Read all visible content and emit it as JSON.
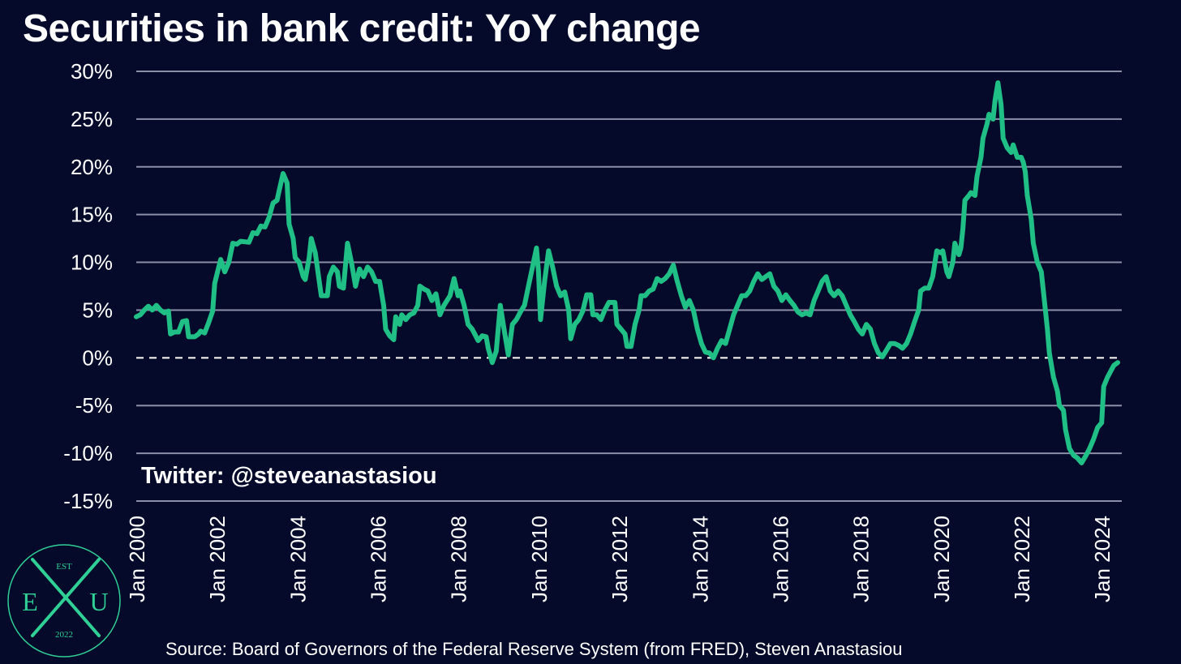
{
  "header": {
    "title": "Securities in bank credit: YoY change"
  },
  "watermark": "Twitter: @steveanastasiou",
  "source": "Source: Board of Governors of the Federal Reserve System (from FRED), Steven Anastasiou",
  "logo": {
    "est": "EST",
    "left_letter": "E",
    "center_letter": "X",
    "right_letter": "U",
    "year": "2022"
  },
  "colors": {
    "background": "#050a2a",
    "line": "#1fbf86",
    "grid": "#8c8fa8",
    "text": "#ffffff"
  },
  "chart_data": {
    "type": "line",
    "title": "Securities in bank credit: YoY change",
    "xlabel": "",
    "ylabel": "",
    "ylim": [
      -15,
      30
    ],
    "xlim": [
      2000.0,
      2024.5
    ],
    "grid": true,
    "zero_line": "dashed",
    "y_ticks": [
      {
        "value": 30,
        "label": "30%"
      },
      {
        "value": 25,
        "label": "25%"
      },
      {
        "value": 20,
        "label": "20%"
      },
      {
        "value": 15,
        "label": "15%"
      },
      {
        "value": 10,
        "label": "10%"
      },
      {
        "value": 5,
        "label": "5%"
      },
      {
        "value": 0,
        "label": "0%"
      },
      {
        "value": -5,
        "label": "-5%"
      },
      {
        "value": -10,
        "label": "-10%"
      },
      {
        "value": -15,
        "label": "-15%"
      }
    ],
    "x_ticks": [
      {
        "value": 2000,
        "label": "Jan 2000"
      },
      {
        "value": 2002,
        "label": "Jan 2002"
      },
      {
        "value": 2004,
        "label": "Jan 2004"
      },
      {
        "value": 2006,
        "label": "Jan 2006"
      },
      {
        "value": 2008,
        "label": "Jan 2008"
      },
      {
        "value": 2010,
        "label": "Jan 2010"
      },
      {
        "value": 2012,
        "label": "Jan 2012"
      },
      {
        "value": 2014,
        "label": "Jan 2014"
      },
      {
        "value": 2016,
        "label": "Jan 2016"
      },
      {
        "value": 2018,
        "label": "Jan 2018"
      },
      {
        "value": 2020,
        "label": "Jan 2020"
      },
      {
        "value": 2022,
        "label": "Jan 2022"
      },
      {
        "value": 2024,
        "label": "Jan 2024"
      }
    ],
    "series": [
      {
        "points": [
          [
            2000.0,
            4.3
          ],
          [
            2000.1,
            4.5
          ],
          [
            2000.2,
            5.0
          ],
          [
            2000.3,
            5.4
          ],
          [
            2000.4,
            5.0
          ],
          [
            2000.5,
            5.5
          ],
          [
            2000.6,
            5.0
          ],
          [
            2000.7,
            4.7
          ],
          [
            2000.8,
            4.9
          ],
          [
            2000.85,
            2.5
          ],
          [
            2000.95,
            2.7
          ],
          [
            2001.05,
            2.7
          ],
          [
            2001.15,
            3.8
          ],
          [
            2001.25,
            3.9
          ],
          [
            2001.3,
            2.2
          ],
          [
            2001.45,
            2.2
          ],
          [
            2001.55,
            2.5
          ],
          [
            2001.6,
            2.8
          ],
          [
            2001.7,
            2.6
          ],
          [
            2001.8,
            3.7
          ],
          [
            2001.9,
            4.9
          ],
          [
            2001.95,
            7.8
          ],
          [
            2002.05,
            9.5
          ],
          [
            2002.1,
            10.3
          ],
          [
            2002.2,
            9.0
          ],
          [
            2002.3,
            10.0
          ],
          [
            2002.4,
            12.0
          ],
          [
            2002.5,
            11.9
          ],
          [
            2002.6,
            12.2
          ],
          [
            2002.8,
            12.1
          ],
          [
            2002.9,
            13.1
          ],
          [
            2003.0,
            13.0
          ],
          [
            2003.1,
            13.8
          ],
          [
            2003.2,
            13.7
          ],
          [
            2003.3,
            14.7
          ],
          [
            2003.4,
            16.2
          ],
          [
            2003.5,
            16.5
          ],
          [
            2003.55,
            17.5
          ],
          [
            2003.65,
            19.3
          ],
          [
            2003.75,
            18.3
          ],
          [
            2003.8,
            14.0
          ],
          [
            2003.9,
            12.5
          ],
          [
            2003.95,
            10.5
          ],
          [
            2004.05,
            10.0
          ],
          [
            2004.15,
            8.5
          ],
          [
            2004.2,
            8.2
          ],
          [
            2004.3,
            10.5
          ],
          [
            2004.35,
            12.5
          ],
          [
            2004.45,
            11.0
          ],
          [
            2004.55,
            8.0
          ],
          [
            2004.6,
            6.5
          ],
          [
            2004.75,
            6.5
          ],
          [
            2004.8,
            8.5
          ],
          [
            2004.9,
            9.5
          ],
          [
            2005.0,
            9.0
          ],
          [
            2005.05,
            7.5
          ],
          [
            2005.15,
            7.3
          ],
          [
            2005.25,
            12.0
          ],
          [
            2005.35,
            10.0
          ],
          [
            2005.45,
            7.5
          ],
          [
            2005.55,
            9.3
          ],
          [
            2005.65,
            8.5
          ],
          [
            2005.75,
            9.5
          ],
          [
            2005.85,
            9.0
          ],
          [
            2005.95,
            8.0
          ],
          [
            2006.05,
            8.0
          ],
          [
            2006.15,
            5.5
          ],
          [
            2006.2,
            3.0
          ],
          [
            2006.3,
            2.3
          ],
          [
            2006.4,
            1.9
          ],
          [
            2006.45,
            4.3
          ],
          [
            2006.55,
            3.5
          ],
          [
            2006.6,
            4.5
          ],
          [
            2006.7,
            4.0
          ],
          [
            2006.8,
            4.5
          ],
          [
            2006.9,
            4.7
          ],
          [
            2007.0,
            5.5
          ],
          [
            2007.05,
            7.5
          ],
          [
            2007.15,
            7.2
          ],
          [
            2007.25,
            7.0
          ],
          [
            2007.35,
            6.0
          ],
          [
            2007.45,
            6.7
          ],
          [
            2007.55,
            4.5
          ],
          [
            2007.65,
            5.5
          ],
          [
            2007.8,
            6.5
          ],
          [
            2007.9,
            8.3
          ],
          [
            2008.0,
            6.5
          ],
          [
            2008.05,
            7.0
          ],
          [
            2008.15,
            5.5
          ],
          [
            2008.25,
            3.5
          ],
          [
            2008.35,
            3.0
          ],
          [
            2008.4,
            2.6
          ],
          [
            2008.5,
            1.8
          ],
          [
            2008.6,
            2.3
          ],
          [
            2008.7,
            2.2
          ],
          [
            2008.75,
            1.0
          ],
          [
            2008.85,
            -0.5
          ],
          [
            2008.95,
            0.7
          ],
          [
            2009.05,
            5.5
          ],
          [
            2009.15,
            2.8
          ],
          [
            2009.25,
            0.3
          ],
          [
            2009.35,
            3.5
          ],
          [
            2009.45,
            4.0
          ],
          [
            2009.55,
            4.8
          ],
          [
            2009.65,
            5.5
          ],
          [
            2009.75,
            7.5
          ],
          [
            2009.85,
            9.5
          ],
          [
            2009.95,
            11.5
          ],
          [
            2010.0,
            9.0
          ],
          [
            2010.05,
            4.0
          ],
          [
            2010.15,
            8.0
          ],
          [
            2010.25,
            11.2
          ],
          [
            2010.35,
            9.5
          ],
          [
            2010.45,
            7.5
          ],
          [
            2010.55,
            6.5
          ],
          [
            2010.65,
            6.9
          ],
          [
            2010.75,
            5.0
          ],
          [
            2010.8,
            2.0
          ],
          [
            2010.9,
            3.5
          ],
          [
            2011.0,
            4.0
          ],
          [
            2011.1,
            4.9
          ],
          [
            2011.2,
            6.6
          ],
          [
            2011.3,
            6.6
          ],
          [
            2011.35,
            4.5
          ],
          [
            2011.45,
            4.5
          ],
          [
            2011.55,
            4.0
          ],
          [
            2011.65,
            5.0
          ],
          [
            2011.75,
            5.8
          ],
          [
            2011.9,
            5.8
          ],
          [
            2011.95,
            3.5
          ],
          [
            2012.05,
            3.0
          ],
          [
            2012.15,
            2.5
          ],
          [
            2012.2,
            1.2
          ],
          [
            2012.3,
            1.2
          ],
          [
            2012.4,
            3.5
          ],
          [
            2012.5,
            5.0
          ],
          [
            2012.55,
            6.5
          ],
          [
            2012.65,
            6.5
          ],
          [
            2012.75,
            7.0
          ],
          [
            2012.85,
            7.2
          ],
          [
            2012.95,
            8.3
          ],
          [
            2013.05,
            8.0
          ],
          [
            2013.15,
            8.3
          ],
          [
            2013.25,
            8.8
          ],
          [
            2013.35,
            9.7
          ],
          [
            2013.45,
            8.0
          ],
          [
            2013.55,
            6.5
          ],
          [
            2013.65,
            5.3
          ],
          [
            2013.75,
            6.0
          ],
          [
            2013.85,
            5.0
          ],
          [
            2013.95,
            3.0
          ],
          [
            2014.05,
            1.5
          ],
          [
            2014.15,
            0.6
          ],
          [
            2014.25,
            0.5
          ],
          [
            2014.35,
            0.0
          ],
          [
            2014.45,
            1.0
          ],
          [
            2014.55,
            1.8
          ],
          [
            2014.65,
            1.5
          ],
          [
            2014.75,
            3.0
          ],
          [
            2014.85,
            4.5
          ],
          [
            2014.95,
            5.5
          ],
          [
            2015.05,
            6.5
          ],
          [
            2015.15,
            6.5
          ],
          [
            2015.25,
            7.0
          ],
          [
            2015.35,
            8.0
          ],
          [
            2015.45,
            8.8
          ],
          [
            2015.55,
            8.2
          ],
          [
            2015.65,
            8.5
          ],
          [
            2015.75,
            8.8
          ],
          [
            2015.85,
            7.5
          ],
          [
            2015.95,
            7.0
          ],
          [
            2016.05,
            6.0
          ],
          [
            2016.15,
            6.6
          ],
          [
            2016.25,
            6.0
          ],
          [
            2016.35,
            5.5
          ],
          [
            2016.45,
            4.8
          ],
          [
            2016.55,
            4.5
          ],
          [
            2016.65,
            4.7
          ],
          [
            2016.75,
            4.5
          ],
          [
            2016.85,
            6.0
          ],
          [
            2016.95,
            7.0
          ],
          [
            2017.05,
            8.0
          ],
          [
            2017.15,
            8.5
          ],
          [
            2017.25,
            7.0
          ],
          [
            2017.35,
            6.5
          ],
          [
            2017.45,
            7.0
          ],
          [
            2017.55,
            6.5
          ],
          [
            2017.65,
            5.5
          ],
          [
            2017.75,
            4.5
          ],
          [
            2017.85,
            3.8
          ],
          [
            2017.95,
            3.0
          ],
          [
            2018.05,
            2.5
          ],
          [
            2018.15,
            3.5
          ],
          [
            2018.25,
            3.0
          ],
          [
            2018.35,
            1.5
          ],
          [
            2018.45,
            0.5
          ],
          [
            2018.55,
            0.1
          ],
          [
            2018.65,
            0.8
          ],
          [
            2018.75,
            1.5
          ],
          [
            2018.85,
            1.5
          ],
          [
            2018.95,
            1.3
          ],
          [
            2019.05,
            1.0
          ],
          [
            2019.15,
            1.5
          ],
          [
            2019.25,
            2.5
          ],
          [
            2019.35,
            3.8
          ],
          [
            2019.45,
            5.0
          ],
          [
            2019.5,
            7.0
          ],
          [
            2019.6,
            7.3
          ],
          [
            2019.7,
            7.3
          ],
          [
            2019.8,
            8.5
          ],
          [
            2019.9,
            11.2
          ],
          [
            2020.0,
            11.0
          ],
          [
            2020.05,
            11.2
          ],
          [
            2020.15,
            9.0
          ],
          [
            2020.2,
            8.5
          ],
          [
            2020.3,
            10.0
          ],
          [
            2020.35,
            12.0
          ],
          [
            2020.45,
            10.8
          ],
          [
            2020.5,
            11.5
          ],
          [
            2020.55,
            13.5
          ],
          [
            2020.6,
            16.5
          ],
          [
            2020.7,
            17.0
          ],
          [
            2020.75,
            17.3
          ],
          [
            2020.85,
            17.0
          ],
          [
            2020.9,
            19.0
          ],
          [
            2021.0,
            21.0
          ],
          [
            2021.05,
            23.0
          ],
          [
            2021.15,
            24.5
          ],
          [
            2021.2,
            25.5
          ],
          [
            2021.3,
            25.0
          ],
          [
            2021.35,
            27.0
          ],
          [
            2021.42,
            28.8
          ],
          [
            2021.5,
            26.5
          ],
          [
            2021.55,
            23.0
          ],
          [
            2021.65,
            22.0
          ],
          [
            2021.75,
            21.5
          ],
          [
            2021.8,
            22.3
          ],
          [
            2021.9,
            21.0
          ],
          [
            2022.0,
            21.0
          ],
          [
            2022.05,
            20.5
          ],
          [
            2022.1,
            19.5
          ],
          [
            2022.15,
            17.0
          ],
          [
            2022.25,
            14.5
          ],
          [
            2022.3,
            12.0
          ],
          [
            2022.4,
            10.0
          ],
          [
            2022.5,
            9.0
          ],
          [
            2022.6,
            5.0
          ],
          [
            2022.65,
            3.0
          ],
          [
            2022.7,
            0.5
          ],
          [
            2022.8,
            -2.0
          ],
          [
            2022.9,
            -3.5
          ],
          [
            2022.95,
            -5.0
          ],
          [
            2023.05,
            -5.5
          ],
          [
            2023.1,
            -7.5
          ],
          [
            2023.2,
            -9.5
          ],
          [
            2023.3,
            -10.2
          ],
          [
            2023.4,
            -10.5
          ],
          [
            2023.5,
            -11.0
          ],
          [
            2023.6,
            -10.3
          ],
          [
            2023.7,
            -9.5
          ],
          [
            2023.8,
            -8.5
          ],
          [
            2023.9,
            -7.3
          ],
          [
            2024.0,
            -6.8
          ],
          [
            2024.05,
            -3.0
          ],
          [
            2024.15,
            -2.0
          ],
          [
            2024.3,
            -0.8
          ],
          [
            2024.4,
            -0.5
          ]
        ]
      }
    ]
  }
}
